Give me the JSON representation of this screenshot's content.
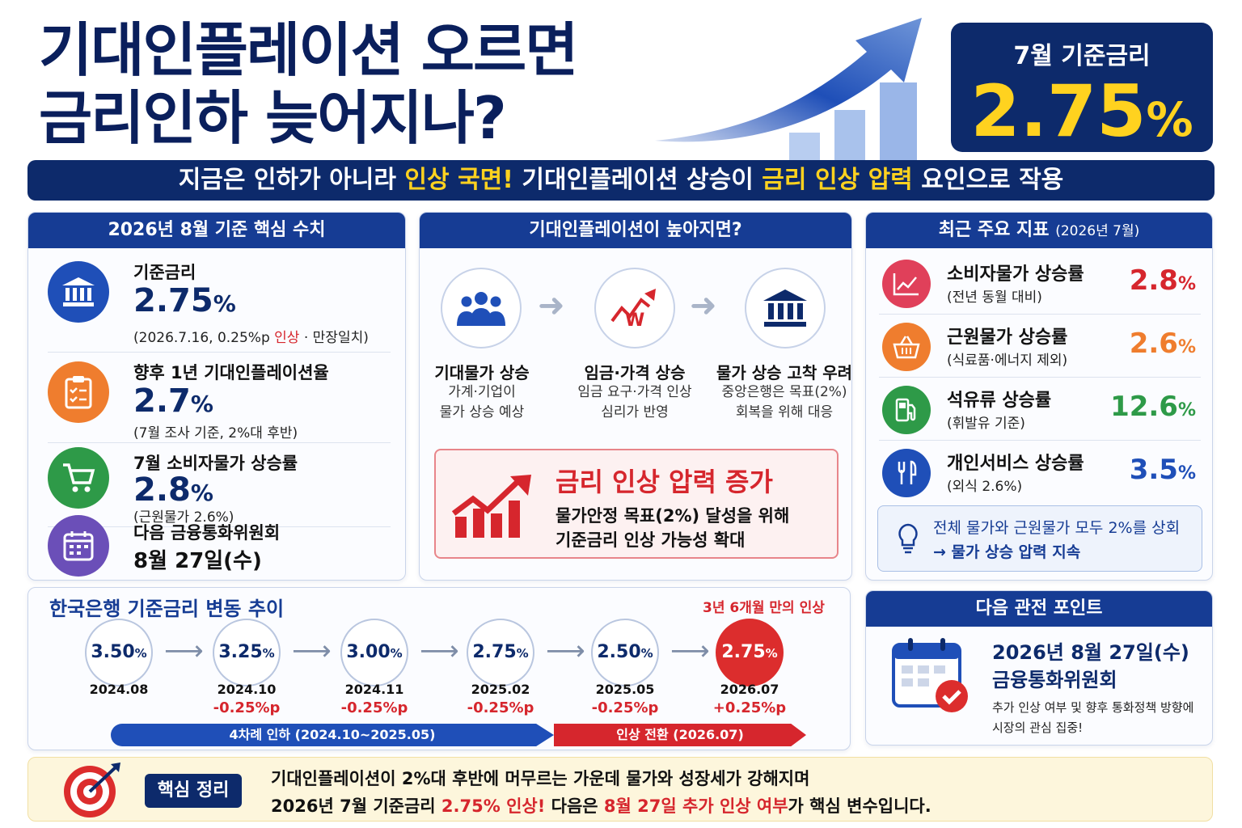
{
  "title": {
    "line1": "기대인플레이션 오르면",
    "line2": "금리인하 늦어지나?"
  },
  "rate_box": {
    "label": "7월 기준금리",
    "value": "2.75",
    "unit": "%"
  },
  "headline": {
    "part1": "지금은 인하가 아니라 ",
    "hl1": "인상 국면!",
    "part2": " 기대인플레이션 상승이 ",
    "hl2": "금리 인상 압력",
    "part3": " 요인으로 작용"
  },
  "left_panel": {
    "heading": "2026년 8월 기준 핵심 수치",
    "metrics": [
      {
        "label": "기준금리",
        "value": "2.75",
        "unit": "%",
        "note_a": "(2026.7.16, 0.25%p ",
        "note_hl": "인상",
        "note_b": " · 만장일치)",
        "icon": "bank-icon",
        "color": "#1f4fb8"
      },
      {
        "label": "향후 1년 기대인플레이션율",
        "value": "2.7",
        "unit": "%",
        "note": "(7월 조사 기준, 2%대 후반)",
        "icon": "clipboard-icon",
        "color": "#ef7d2e"
      },
      {
        "label": "7월 소비자물가 상승률",
        "value": "2.8",
        "unit": "%",
        "note": "(근원물가 2.6%)",
        "icon": "cart-icon",
        "color": "#2e9a48"
      },
      {
        "label": "다음 금융통화위원회",
        "value": "8월 27일(수)",
        "icon": "calendar-icon",
        "color": "#6b4fb8"
      }
    ]
  },
  "mid_panel": {
    "heading": "기대인플레이션이 높아지면?",
    "steps": [
      {
        "title": "기대물가 상승",
        "desc1": "가계·기업이",
        "desc2": "물가 상승 예상",
        "icon": "people-icon"
      },
      {
        "title": "임금·가격 상승",
        "desc1": "임금 요구·가격 인상",
        "desc2": "심리가 반영",
        "icon": "wage-price-icon"
      },
      {
        "title": "물가 상승 고착 우려",
        "desc1": "중앙은행은 목표(2%)",
        "desc2": "회복을 위해 대응",
        "icon": "central-bank-icon"
      }
    ],
    "pressure": {
      "title": "금리 인상 압력 증가",
      "desc1": "물가안정 목표(2%) 달성을 위해",
      "desc2": "기준금리 인상 가능성 확대",
      "icon": "rising-chart-icon"
    }
  },
  "right_panel": {
    "heading": "최근 주요 지표",
    "heading_sub": "(2026년 7월)",
    "indicators": [
      {
        "label": "소비자물가 상승률",
        "sub": "(전년 동월 대비)",
        "value": "2.8",
        "unit": "%",
        "color": "#d6262d",
        "icon_color": "#e0405a",
        "icon": "line-chart-icon"
      },
      {
        "label": "근원물가 상승률",
        "sub": "(식료품·에너지 제외)",
        "value": "2.6",
        "unit": "%",
        "color": "#ef7d2e",
        "icon_color": "#ef7d2e",
        "icon": "basket-icon"
      },
      {
        "label": "석유류 상승률",
        "sub": "(휘발유 기준)",
        "value": "12.6",
        "unit": "%",
        "color": "#2e9a48",
        "icon_color": "#2e9a48",
        "icon": "fuel-pump-icon"
      },
      {
        "label": "개인서비스 상승률",
        "sub": "(외식 2.6%)",
        "value": "3.5",
        "unit": "%",
        "color": "#1f4fb8",
        "icon_color": "#1f4fb8",
        "icon": "utensils-icon"
      }
    ],
    "note1": "전체 물가와 근원물가 모두 2%를 상회",
    "note2": "→ 물가 상승 압력 지속"
  },
  "timeline": {
    "heading": "한국은행 기준금리 변동 추이",
    "note": "3년 6개월 만의 인상",
    "nodes": [
      {
        "rate": "3.50",
        "unit": "%",
        "date": "2024.08",
        "change": ""
      },
      {
        "rate": "3.25",
        "unit": "%",
        "date": "2024.10",
        "change": "-0.25%p"
      },
      {
        "rate": "3.00",
        "unit": "%",
        "date": "2024.11",
        "change": "-0.25%p"
      },
      {
        "rate": "2.75",
        "unit": "%",
        "date": "2025.02",
        "change": "-0.25%p"
      },
      {
        "rate": "2.50",
        "unit": "%",
        "date": "2025.05",
        "change": "-0.25%p"
      },
      {
        "rate": "2.75",
        "unit": "%",
        "date": "2026.07",
        "change": "+0.25%p"
      }
    ],
    "phase_cut": "4차례 인하 (2024.10~2025.05)",
    "phase_hike": "인상 전환 (2026.07)"
  },
  "next_point": {
    "heading": "다음 관전 포인트",
    "date": "2026년 8월 27일(수)",
    "event": "금융통화위원회",
    "desc": "추가 인상 여부 및 향후 통화정책 방향에 시장의 관심 집중!"
  },
  "summary": {
    "badge": "핵심 정리",
    "line1": "기대인플레이션이 2%대 후반에 머무르는 가운데 물가와 성장세가 강해지며",
    "line2_a": "2026년 7월 기준금리 ",
    "line2_hl1": "2.75% 인상!",
    "line2_b": " 다음은 ",
    "line2_hl2": "8월 27일 추가 인상 여부",
    "line2_c": "가 핵심 변수입니다."
  }
}
